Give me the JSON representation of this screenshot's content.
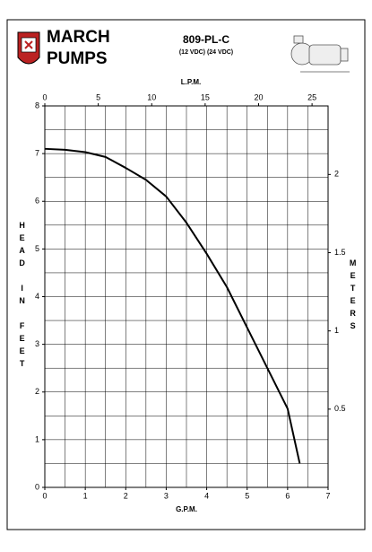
{
  "brand": {
    "line1": "MARCH",
    "line2": "PUMPS"
  },
  "chart_data": {
    "type": "line",
    "title": "809-PL-C",
    "subtitle": "(12 VDC) (24 VDC)",
    "xlabel": "G.P.M.",
    "ylabel": "HEAD IN FEET",
    "x2label": "L.P.M.",
    "y2label": "METERS",
    "xlim": [
      0,
      7
    ],
    "ylim": [
      0,
      8
    ],
    "xticks": [
      0,
      1,
      2,
      3,
      4,
      5,
      6,
      7
    ],
    "yticks": [
      0,
      1,
      2,
      3,
      4,
      5,
      6,
      7,
      8
    ],
    "xgrid": [
      0.5,
      1,
      1.5,
      2,
      2.5,
      3,
      3.5,
      4,
      4.5,
      5,
      5.5,
      6,
      6.5
    ],
    "ygrid": [
      0.5,
      1,
      1.5,
      2,
      2.5,
      3,
      3.5,
      4,
      4.5,
      5,
      5.5,
      6,
      6.5,
      7,
      7.5
    ],
    "x2lim": [
      0,
      26.5
    ],
    "x2ticks": [
      0,
      5,
      10,
      15,
      20,
      25
    ],
    "y2lim": [
      0,
      2.438
    ],
    "y2ticks": [
      0.5,
      1,
      1.5,
      2
    ],
    "x": [
      0,
      0.5,
      1,
      1.5,
      2,
      2.5,
      3,
      3.5,
      4,
      4.5,
      5,
      5.5,
      6,
      6.3
    ],
    "series": [
      {
        "name": "809-PL-C",
        "color": "#000000",
        "values": [
          7.1,
          7.08,
          7.03,
          6.93,
          6.7,
          6.45,
          6.1,
          5.55,
          4.9,
          4.2,
          3.35,
          2.5,
          1.65,
          0.5
        ]
      }
    ]
  }
}
